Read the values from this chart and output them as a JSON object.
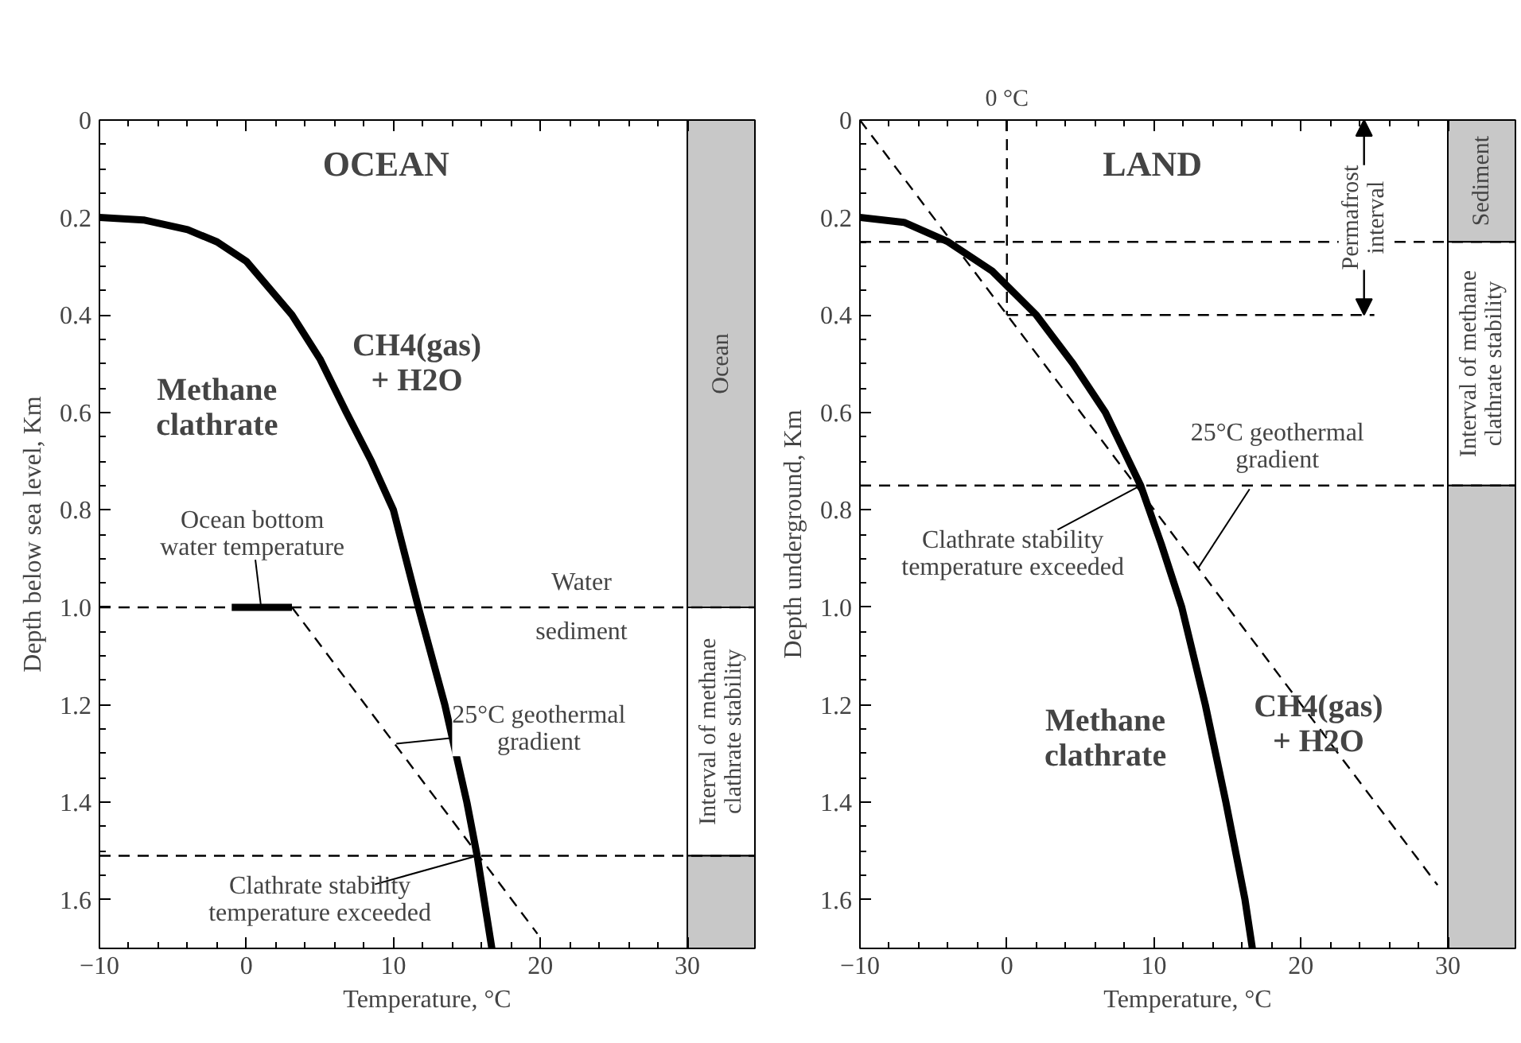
{
  "chart_data": [
    {
      "type": "line",
      "title": "OCEAN",
      "xlabel": "Temperature, °C",
      "ylabel": "Depth below sea level, Km",
      "xlim": [
        -10,
        34.6
      ],
      "ylim": [
        1.7,
        0
      ],
      "xticks": [
        {
          "value": -10,
          "label": "−10"
        },
        0,
        10,
        20,
        30
      ],
      "yticks": [
        0,
        0.2,
        0.4,
        0.6,
        0.8,
        {
          "value": 1,
          "label": "1.0"
        },
        1.2,
        1.4,
        1.6
      ],
      "grid": false,
      "series": [
        {
          "color": "#000000",
          "line_style": "solid",
          "x": [
            -10,
            -7,
            -4,
            -2,
            0,
            3.1,
            5,
            6.8,
            8.5,
            10,
            11.7,
            13.5,
            15,
            15.7,
            16.7
          ],
          "values": [
            0.2,
            0.205,
            0.225,
            0.25,
            0.29,
            0.4,
            0.49,
            0.6,
            0.7,
            0.8,
            1.0,
            1.2,
            1.4,
            1.51,
            1.7
          ]
        },
        {
          "color": "#000000",
          "line_style": "dashed",
          "x": [
            3.1,
            19.8
          ],
          "values": [
            1.0,
            1.67
          ]
        },
        {
          "color": "#000000",
          "line_style": "solid",
          "x": [
            -1,
            3.1
          ],
          "values": [
            1.0,
            1.0
          ]
        }
      ],
      "ref_lines": [
        {
          "axis": "y",
          "value": 1.0,
          "label": null,
          "line_style": "dashed"
        },
        {
          "axis": "y",
          "value": 1.51,
          "label": null,
          "line_style": "dashed"
        }
      ],
      "bands": [
        {
          "axis": "y",
          "from": 0,
          "to": 1.0,
          "label": "Ocean",
          "color": "#c8c8c8"
        },
        {
          "axis": "y",
          "from": 1.0,
          "to": 1.51,
          "label": "Interval of methane\nclathrate stability",
          "color": "#ffffff"
        },
        {
          "axis": "y",
          "from": 1.51,
          "to": 1.7,
          "label": null,
          "color": "#c8c8c8"
        }
      ],
      "annotations": [
        "Methane\nclathrate",
        "CH4(gas)\n+ H2O",
        {
          "text": "Ocean bottom\nwater temperature",
          "x": 1,
          "y": 1.0
        },
        "Water",
        "sediment",
        {
          "text": "25°C geothermal\ngradient",
          "x": 10.2,
          "y": 1.28
        },
        {
          "text": "Clathrate stability\ntemperature exceeded",
          "x": 15.7,
          "y": 1.51
        }
      ]
    },
    {
      "type": "line",
      "title": "LAND",
      "xlabel": "Temperature, °C",
      "ylabel": "Depth underground, Km",
      "xlim": [
        -10,
        34.6
      ],
      "ylim": [
        1.7,
        0
      ],
      "xticks": [
        {
          "value": -10,
          "label": "−10"
        },
        0,
        10,
        20,
        30
      ],
      "yticks": [
        0,
        0.2,
        0.4,
        0.6,
        0.8,
        {
          "value": 1,
          "label": "1.0"
        },
        1.2,
        1.4,
        1.6
      ],
      "grid": false,
      "series": [
        {
          "color": "#000000",
          "line_style": "solid",
          "x": [
            -10,
            -7,
            -4,
            -1,
            2,
            4.5,
            6.7,
            9.1,
            10.5,
            11.9,
            13.5,
            14.9,
            16.2,
            16.7
          ],
          "values": [
            0.2,
            0.21,
            0.25,
            0.31,
            0.4,
            0.5,
            0.6,
            0.75,
            0.87,
            1.0,
            1.2,
            1.4,
            1.6,
            1.7
          ]
        },
        {
          "color": "#000000",
          "line_style": "dashed",
          "x": [
            -10,
            29.3
          ],
          "values": [
            0,
            1.57
          ]
        },
        {
          "color": "#000000",
          "line_style": "dashed",
          "x": [
            0,
            0
          ],
          "values": [
            0,
            0.4
          ]
        },
        {
          "color": "#000000",
          "line_style": "dashed",
          "x": [
            0,
            25
          ],
          "values": [
            0.4,
            0.4
          ]
        }
      ],
      "ref_lines": [
        {
          "axis": "y",
          "value": 0.25,
          "label": null,
          "line_style": "dashed"
        },
        {
          "axis": "y",
          "value": 0.75,
          "label": null,
          "line_style": "dashed"
        }
      ],
      "bands": [
        {
          "axis": "y",
          "from": 0,
          "to": 0.25,
          "label": "Sediment",
          "color": "#c8c8c8"
        },
        {
          "axis": "y",
          "from": 0.25,
          "to": 0.75,
          "label": "Interval of methane\nclathrate stability",
          "color": "#ffffff"
        },
        {
          "axis": "y",
          "from": 0.75,
          "to": 1.7,
          "label": null,
          "color": "#c8c8c8"
        }
      ],
      "annotations": [
        {
          "text": "0 °C",
          "x": 0
        },
        {
          "text": "Permafrost\ninterval",
          "x": 24.3,
          "y": 0.4
        },
        {
          "text": "25°C geothermal\ngradient",
          "x": 13,
          "y": 0.92
        },
        {
          "text": "Clathrate stability\ntemperature exceeded",
          "x": 9.1,
          "y": 0.75
        },
        "Methane\nclathrate",
        "CH4(gas)\n+ H2O"
      ]
    }
  ]
}
